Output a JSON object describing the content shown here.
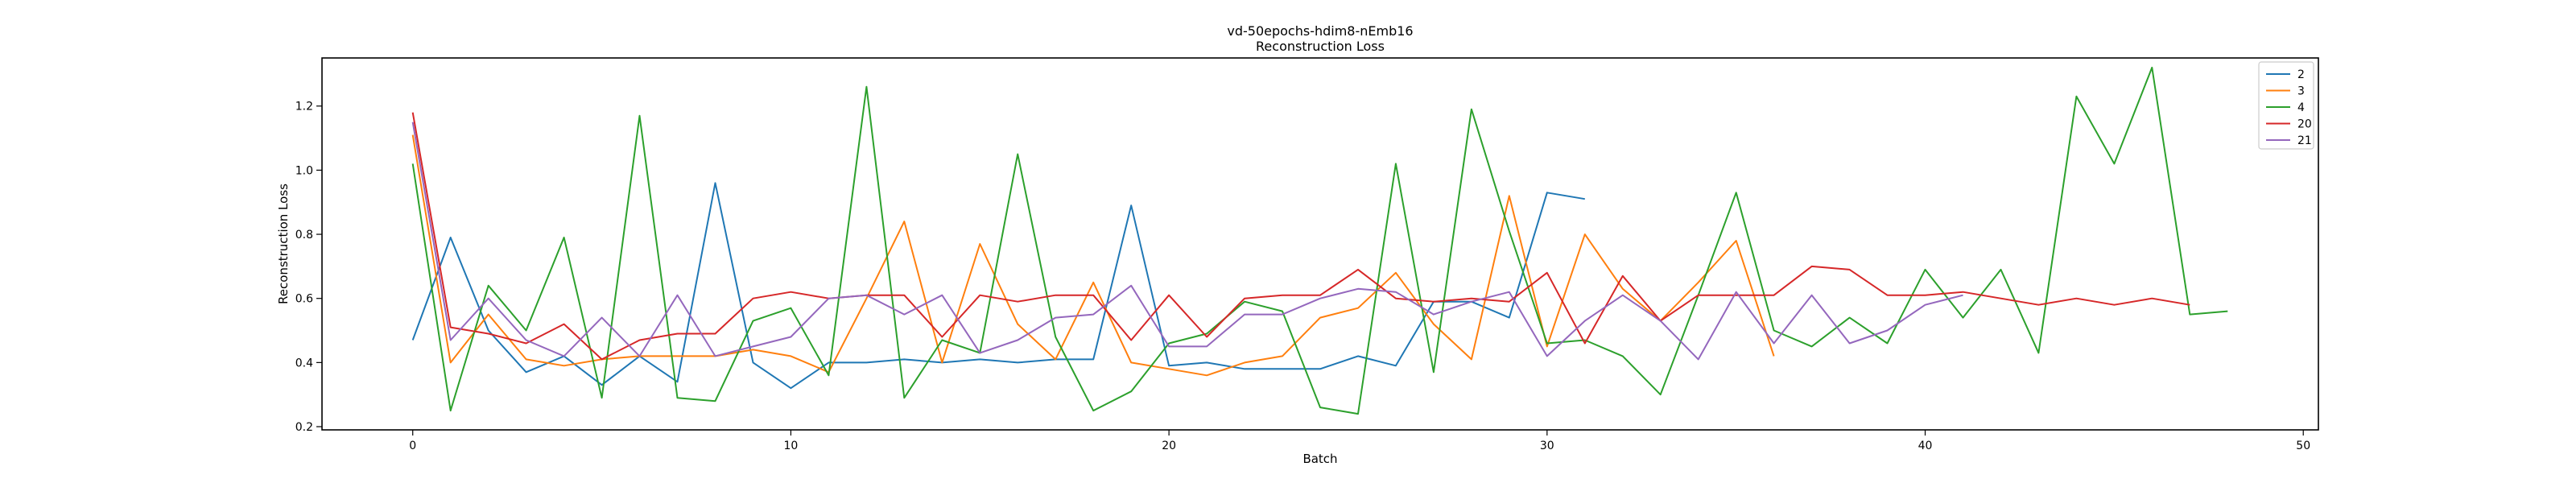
{
  "chart_data": {
    "type": "line",
    "title": "vd-50epochs-hdim8-nEmb16",
    "subtitle": "Reconstruction Loss",
    "xlabel": "Batch",
    "ylabel": "Reconstruction Loss",
    "xlim": [
      -2.4,
      50.4
    ],
    "ylim": [
      0.19,
      1.35
    ],
    "xticks": [
      0,
      10,
      20,
      30,
      40,
      50
    ],
    "yticks": [
      0.2,
      0.4,
      0.6,
      0.8,
      1.0,
      1.2
    ],
    "xtick_labels": [
      "0",
      "10",
      "20",
      "30",
      "40",
      "50"
    ],
    "ytick_labels": [
      "0.2",
      "0.4",
      "0.6",
      "0.8",
      "1.0",
      "1.2"
    ],
    "grid": false,
    "legend_position": "top-right",
    "series": [
      {
        "name": "2",
        "color": "#1f77b4",
        "values": [
          0.47,
          0.79,
          0.5,
          0.37,
          0.42,
          0.33,
          0.42,
          0.34,
          0.96,
          0.4,
          0.32,
          0.4,
          0.4,
          0.41,
          0.4,
          0.41,
          0.4,
          0.41,
          0.41,
          0.89,
          0.39,
          0.4,
          0.38,
          0.38,
          0.38,
          0.42,
          0.39,
          0.59,
          0.59,
          0.54,
          0.93,
          0.91
        ]
      },
      {
        "name": "3",
        "color": "#ff7f0e",
        "values": [
          1.11,
          0.4,
          0.55,
          0.41,
          0.39,
          0.41,
          0.42,
          0.42,
          0.42,
          0.44,
          0.42,
          0.37,
          0.6,
          0.84,
          0.4,
          0.77,
          0.52,
          0.41,
          0.65,
          0.4,
          0.38,
          0.36,
          0.4,
          0.42,
          0.54,
          0.57,
          0.68,
          0.52,
          0.41,
          0.92,
          0.45,
          0.8,
          0.63,
          0.53,
          0.65,
          0.78,
          0.42
        ]
      },
      {
        "name": "4",
        "color": "#2ca02c",
        "values": [
          1.02,
          0.25,
          0.64,
          0.5,
          0.79,
          0.29,
          1.17,
          0.29,
          0.28,
          0.53,
          0.57,
          0.36,
          1.26,
          0.29,
          0.47,
          0.43,
          1.05,
          0.48,
          0.25,
          0.31,
          0.46,
          0.49,
          0.59,
          0.56,
          0.26,
          0.24,
          1.02,
          0.37,
          1.19,
          0.81,
          0.46,
          0.47,
          0.42,
          0.3,
          0.61,
          0.93,
          0.5,
          0.45,
          0.54,
          0.46,
          0.69,
          0.54,
          0.69,
          0.43,
          1.23,
          1.02,
          1.32,
          0.55,
          0.56
        ]
      },
      {
        "name": "20",
        "color": "#d62728",
        "values": [
          1.18,
          0.51,
          0.49,
          0.46,
          0.52,
          0.41,
          0.47,
          0.49,
          0.49,
          0.6,
          0.62,
          0.6,
          0.61,
          0.61,
          0.48,
          0.61,
          0.59,
          0.61,
          0.61,
          0.47,
          0.61,
          0.48,
          0.6,
          0.61,
          0.61,
          0.69,
          0.6,
          0.59,
          0.6,
          0.59,
          0.68,
          0.46,
          0.67,
          0.53,
          0.61,
          0.61,
          0.61,
          0.7,
          0.69,
          0.61,
          0.61,
          0.62,
          0.6,
          0.58,
          0.6,
          0.58,
          0.6,
          0.58
        ]
      },
      {
        "name": "21",
        "color": "#9467bd",
        "values": [
          1.15,
          0.47,
          0.6,
          0.47,
          0.42,
          0.54,
          0.42,
          0.61,
          0.42,
          0.45,
          0.48,
          0.6,
          0.61,
          0.55,
          0.61,
          0.43,
          0.47,
          0.54,
          0.55,
          0.64,
          0.45,
          0.45,
          0.55,
          0.55,
          0.6,
          0.63,
          0.62,
          0.55,
          0.59,
          0.62,
          0.42,
          0.53,
          0.61,
          0.53,
          0.41,
          0.62,
          0.46,
          0.61,
          0.46,
          0.5,
          0.58,
          0.61
        ]
      }
    ]
  }
}
